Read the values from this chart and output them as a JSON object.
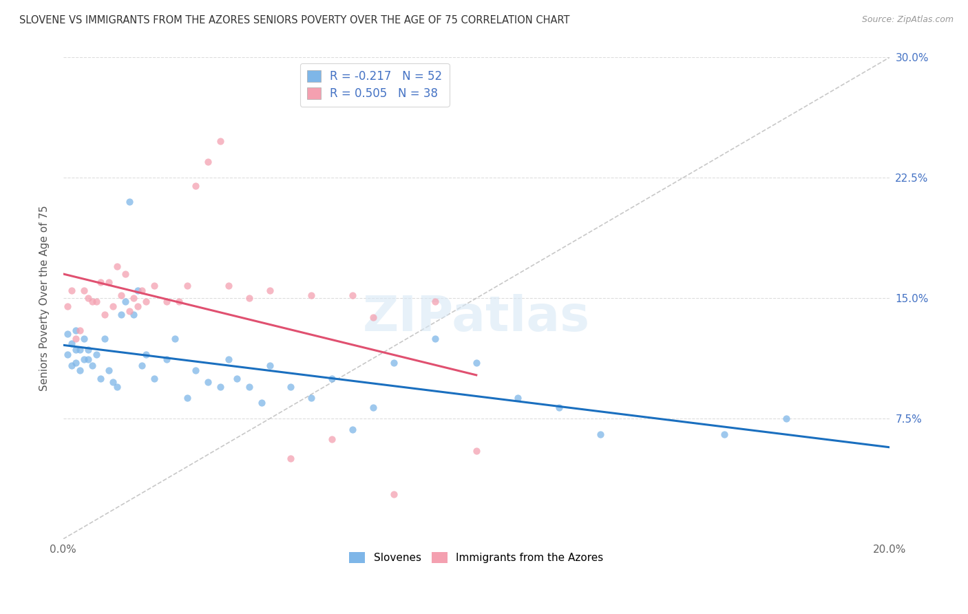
{
  "title": "SLOVENE VS IMMIGRANTS FROM THE AZORES SENIORS POVERTY OVER THE AGE OF 75 CORRELATION CHART",
  "source": "Source: ZipAtlas.com",
  "ylabel": "Seniors Poverty Over the Age of 75",
  "xlim": [
    0.0,
    0.2
  ],
  "ylim": [
    0.0,
    0.3
  ],
  "r_slovene": -0.217,
  "n_slovene": 52,
  "r_azores": 0.505,
  "n_azores": 38,
  "color_slovene": "#7EB6E8",
  "color_azores": "#F4A0B0",
  "line_color_slovene": "#1A6FBF",
  "line_color_azores": "#E05070",
  "line_color_diagonal": "#C8C8C8",
  "scatter_size": 55,
  "scatter_alpha": 0.75,
  "slovene_x": [
    0.001,
    0.001,
    0.002,
    0.002,
    0.003,
    0.003,
    0.003,
    0.004,
    0.004,
    0.005,
    0.005,
    0.006,
    0.006,
    0.007,
    0.008,
    0.009,
    0.01,
    0.011,
    0.012,
    0.013,
    0.014,
    0.015,
    0.016,
    0.017,
    0.018,
    0.019,
    0.02,
    0.022,
    0.025,
    0.027,
    0.03,
    0.032,
    0.035,
    0.038,
    0.04,
    0.042,
    0.045,
    0.048,
    0.05,
    0.055,
    0.06,
    0.065,
    0.07,
    0.075,
    0.08,
    0.09,
    0.1,
    0.11,
    0.12,
    0.13,
    0.16,
    0.175
  ],
  "slovene_y": [
    0.128,
    0.115,
    0.122,
    0.108,
    0.118,
    0.11,
    0.13,
    0.105,
    0.118,
    0.112,
    0.125,
    0.118,
    0.112,
    0.108,
    0.115,
    0.1,
    0.125,
    0.105,
    0.098,
    0.095,
    0.14,
    0.148,
    0.21,
    0.14,
    0.155,
    0.108,
    0.115,
    0.1,
    0.112,
    0.125,
    0.088,
    0.105,
    0.098,
    0.095,
    0.112,
    0.1,
    0.095,
    0.085,
    0.108,
    0.095,
    0.088,
    0.1,
    0.068,
    0.082,
    0.11,
    0.125,
    0.11,
    0.088,
    0.082,
    0.065,
    0.065,
    0.075
  ],
  "azores_x": [
    0.001,
    0.002,
    0.003,
    0.004,
    0.005,
    0.006,
    0.007,
    0.008,
    0.009,
    0.01,
    0.011,
    0.012,
    0.013,
    0.014,
    0.015,
    0.016,
    0.017,
    0.018,
    0.019,
    0.02,
    0.022,
    0.025,
    0.028,
    0.03,
    0.032,
    0.035,
    0.038,
    0.04,
    0.045,
    0.05,
    0.055,
    0.06,
    0.065,
    0.07,
    0.075,
    0.08,
    0.09,
    0.1
  ],
  "azores_y": [
    0.145,
    0.155,
    0.125,
    0.13,
    0.155,
    0.15,
    0.148,
    0.148,
    0.16,
    0.14,
    0.16,
    0.145,
    0.17,
    0.152,
    0.165,
    0.142,
    0.15,
    0.145,
    0.155,
    0.148,
    0.158,
    0.148,
    0.148,
    0.158,
    0.22,
    0.235,
    0.248,
    0.158,
    0.15,
    0.155,
    0.05,
    0.152,
    0.062,
    0.152,
    0.138,
    0.028,
    0.148,
    0.055
  ],
  "legend_label_slovene": "Slovenes",
  "legend_label_azores": "Immigrants from the Azores",
  "watermark": "ZIPatlas",
  "background_color": "#FFFFFF",
  "grid_color": "#DDDDDD"
}
